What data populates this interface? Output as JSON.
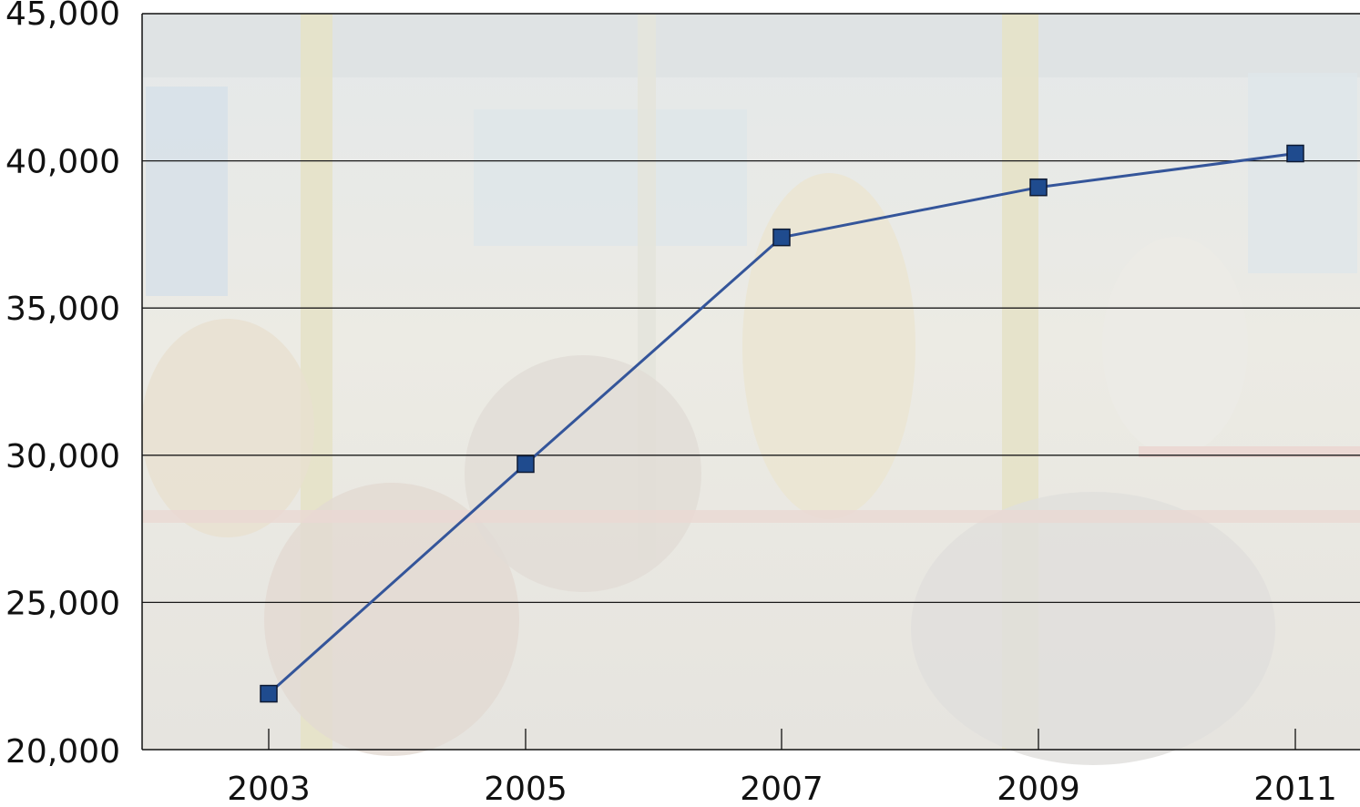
{
  "chart_data": {
    "type": "line",
    "title": "",
    "xlabel": "",
    "ylabel": "",
    "x": [
      "2003",
      "2005",
      "2007",
      "2009",
      "2011"
    ],
    "series": [
      {
        "values": [
          21900,
          29700,
          37400,
          39100,
          40250
        ]
      }
    ],
    "ylim": [
      20000,
      45000
    ],
    "yticks": [
      "20,000",
      "25,000",
      "30,000",
      "35,000",
      "40,000",
      "45,000"
    ],
    "ytick_values": [
      20000,
      25000,
      30000,
      35000,
      40000,
      45000
    ],
    "grid": true,
    "legend": "none",
    "background": "faded photo of bus passengers",
    "colors": {
      "line": "#34559a",
      "marker": "#1f4b8e",
      "marker_edge": "#0e1a33",
      "grid": "#1a1a1a"
    }
  }
}
